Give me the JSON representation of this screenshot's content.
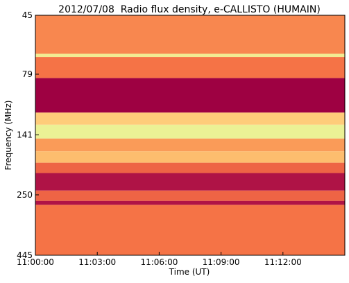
{
  "chart_data": {
    "type": "spectrogram",
    "title": "2012/07/08  Radio flux density, e-CALLISTO (HUMAIN)",
    "xlabel": "Time (UT)",
    "ylabel": "Frequency (MHz)",
    "xlim": [
      0,
      900
    ],
    "xticks": [
      {
        "value": 0,
        "label": "11:00:00"
      },
      {
        "value": 180,
        "label": "11:03:00"
      },
      {
        "value": 360,
        "label": "11:06:00"
      },
      {
        "value": 540,
        "label": "11:09:00"
      },
      {
        "value": 720,
        "label": "11:12:00"
      }
    ],
    "ylim": [
      45,
      445
    ],
    "yticks": [
      45,
      79,
      141,
      250,
      445
    ],
    "ylog": true,
    "yinverted": true,
    "colormap": [
      "#9e0142",
      "#d53e4f",
      "#f46d43",
      "#fdae61",
      "#fee08b",
      "#e6f598",
      "#abdda4"
    ],
    "bands": [
      {
        "from": 45,
        "to": 65,
        "level": 0.4
      },
      {
        "from": 65,
        "to": 67,
        "level": 0.75
      },
      {
        "from": 67,
        "to": 82,
        "level": 0.35
      },
      {
        "from": 82,
        "to": 114,
        "level": 0.0
      },
      {
        "from": 114,
        "to": 128,
        "level": 0.6
      },
      {
        "from": 128,
        "to": 146,
        "level": 0.8
      },
      {
        "from": 146,
        "to": 165,
        "level": 0.45
      },
      {
        "from": 165,
        "to": 184,
        "level": 0.55
      },
      {
        "from": 184,
        "to": 203,
        "level": 0.3
      },
      {
        "from": 203,
        "to": 240,
        "level": 0.05
      },
      {
        "from": 240,
        "to": 265,
        "level": 0.3
      },
      {
        "from": 265,
        "to": 275,
        "level": 0.05
      },
      {
        "from": 275,
        "to": 445,
        "level": 0.35
      }
    ]
  }
}
